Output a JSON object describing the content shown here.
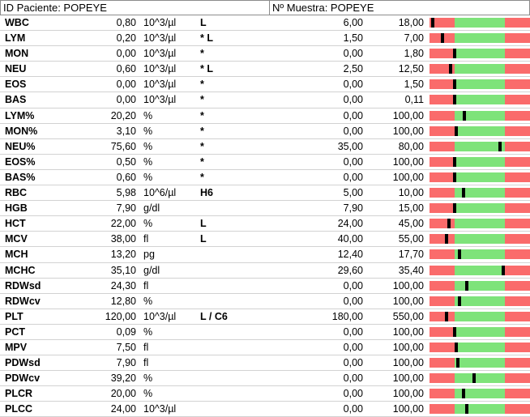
{
  "header": {
    "patient_id": "ID Paciente: POPEYE",
    "sample_no": "Nº Muestra: POPEYE"
  },
  "rows": [
    {
      "name": "WBC",
      "value": "0,80",
      "unit": "10^3/µl",
      "flag": "L",
      "low": "6,00",
      "high": "18,00",
      "marker": 0.03
    },
    {
      "name": "LYM",
      "value": "0,20",
      "unit": "10^3/µl",
      "flag": "* L",
      "low": "1,50",
      "high": "7,00",
      "marker": 0.13
    },
    {
      "name": "MON",
      "value": "0,00",
      "unit": "10^3/µl",
      "flag": "*",
      "low": "0,00",
      "high": "1,80",
      "marker": 0.25
    },
    {
      "name": "NEU",
      "value": "0,60",
      "unit": "10^3/µl",
      "flag": "* L",
      "low": "2,50",
      "high": "12,50",
      "marker": 0.21
    },
    {
      "name": "EOS",
      "value": "0,00",
      "unit": "10^3/µl",
      "flag": "*",
      "low": "0,00",
      "high": "1,50",
      "marker": 0.25
    },
    {
      "name": "BAS",
      "value": "0,00",
      "unit": "10^3/µl",
      "flag": "*",
      "low": "0,00",
      "high": "0,11",
      "marker": 0.25
    },
    {
      "name": "LYM%",
      "value": "20,20",
      "unit": "%",
      "flag": "*",
      "low": "0,00",
      "high": "100,00",
      "marker": 0.35
    },
    {
      "name": "MON%",
      "value": "3,10",
      "unit": "%",
      "flag": "*",
      "low": "0,00",
      "high": "100,00",
      "marker": 0.27
    },
    {
      "name": "NEU%",
      "value": "75,60",
      "unit": "%",
      "flag": "*",
      "low": "35,00",
      "high": "80,00",
      "marker": 0.7
    },
    {
      "name": "EOS%",
      "value": "0,50",
      "unit": "%",
      "flag": "*",
      "low": "0,00",
      "high": "100,00",
      "marker": 0.25
    },
    {
      "name": "BAS%",
      "value": "0,60",
      "unit": "%",
      "flag": "*",
      "low": "0,00",
      "high": "100,00",
      "marker": 0.25
    },
    {
      "name": "RBC",
      "value": "5,98",
      "unit": "10^6/µl",
      "flag": "H6",
      "low": "5,00",
      "high": "10,00",
      "marker": 0.34
    },
    {
      "name": "HGB",
      "value": "7,90",
      "unit": "g/dl",
      "flag": "",
      "low": "7,90",
      "high": "15,00",
      "marker": 0.25
    },
    {
      "name": "HCT",
      "value": "22,00",
      "unit": "%",
      "flag": "L",
      "low": "24,00",
      "high": "45,00",
      "marker": 0.19
    },
    {
      "name": "MCV",
      "value": "38,00",
      "unit": "fl",
      "flag": "L",
      "low": "40,00",
      "high": "55,00",
      "marker": 0.17
    },
    {
      "name": "MCH",
      "value": "13,20",
      "unit": "pg",
      "flag": "",
      "low": "12,40",
      "high": "17,70",
      "marker": 0.3
    },
    {
      "name": "MCHC",
      "value": "35,10",
      "unit": "g/dl",
      "flag": "",
      "low": "29,60",
      "high": "35,40",
      "marker": 0.73
    },
    {
      "name": "RDWsd",
      "value": "24,30",
      "unit": "fl",
      "flag": "",
      "low": "0,00",
      "high": "100,00",
      "marker": 0.37
    },
    {
      "name": "RDWcv",
      "value": "12,80",
      "unit": "%",
      "flag": "",
      "low": "0,00",
      "high": "100,00",
      "marker": 0.3
    },
    {
      "name": "PLT",
      "value": "120,00",
      "unit": "10^3/µl",
      "flag": "L / C6",
      "low": "180,00",
      "high": "550,00",
      "marker": 0.17
    },
    {
      "name": "PCT",
      "value": "0,09",
      "unit": "%",
      "flag": "",
      "low": "0,00",
      "high": "100,00",
      "marker": 0.25
    },
    {
      "name": "MPV",
      "value": "7,50",
      "unit": "fl",
      "flag": "",
      "low": "0,00",
      "high": "100,00",
      "marker": 0.27
    },
    {
      "name": "PDWsd",
      "value": "7,90",
      "unit": "fl",
      "flag": "",
      "low": "0,00",
      "high": "100,00",
      "marker": 0.28
    },
    {
      "name": "PDWcv",
      "value": "39,20",
      "unit": "%",
      "flag": "",
      "low": "0,00",
      "high": "100,00",
      "marker": 0.44
    },
    {
      "name": "PLCR",
      "value": "20,00",
      "unit": "%",
      "flag": "",
      "low": "0,00",
      "high": "100,00",
      "marker": 0.34
    },
    {
      "name": "PLCC",
      "value": "24,00",
      "unit": "10^3/µl",
      "flag": "",
      "low": "0,00",
      "high": "100,00",
      "marker": 0.37
    }
  ]
}
